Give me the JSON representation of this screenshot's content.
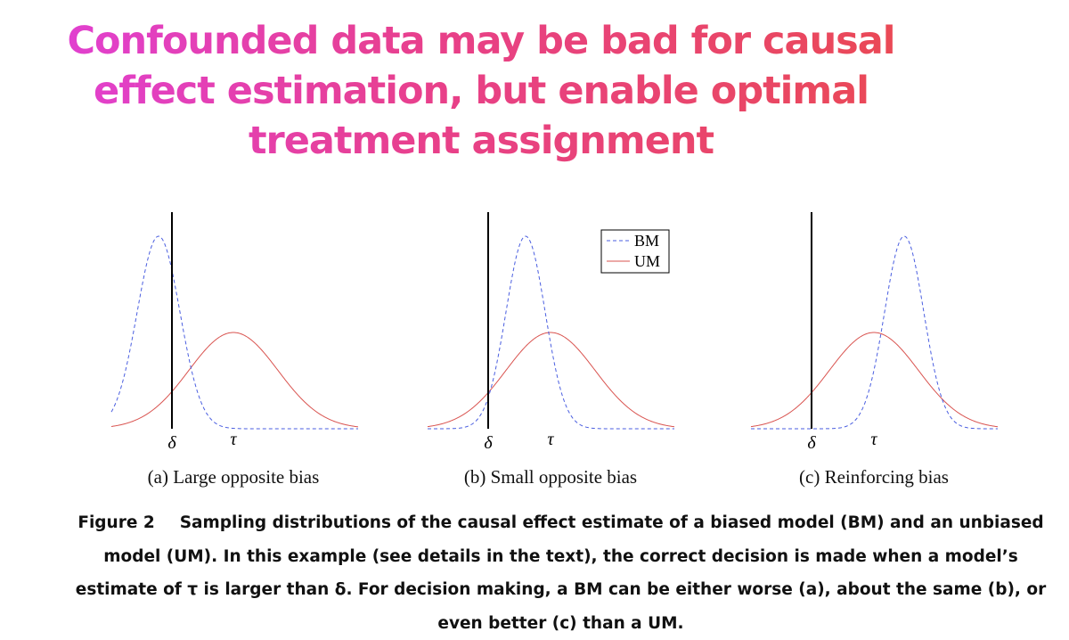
{
  "title": "Confounded data may be bad for causal effect estimation, but enable optimal treatment assignment",
  "panels": [
    {
      "caption": "(a) Large opposite bias",
      "delta": "δ",
      "tau": "τ"
    },
    {
      "caption": "(b) Small opposite bias",
      "delta": "δ",
      "tau": "τ"
    },
    {
      "caption": "(c) Reinforcing bias",
      "delta": "δ",
      "tau": "τ"
    }
  ],
  "legend": [
    "BM",
    "UM"
  ],
  "figure_caption": {
    "label": "Figure 2",
    "text": "Sampling distributions of the causal effect estimate of a biased model (BM) and an unbiased model (UM). In this example (see details in the text), the correct decision is made when a model’s estimate of τ is larger than δ. For decision making, a BM can be either worse (a), about the same (b), or even better (c) than a UM."
  }
}
